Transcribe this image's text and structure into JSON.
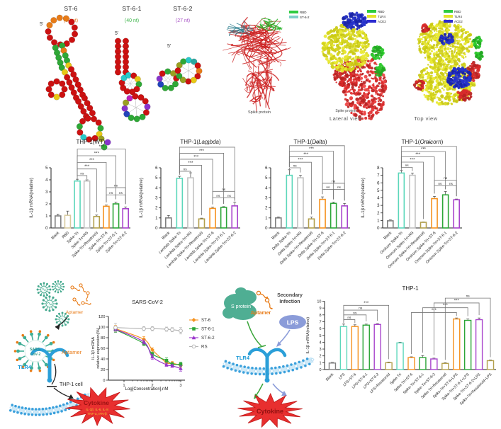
{
  "rna_structures": {
    "panels": [
      {
        "title": "ST-6",
        "length_label": "(80 nt)",
        "color": "#e87722",
        "five_prime": "5'"
      },
      {
        "title": "ST-6-1",
        "length_label": "(40 nt)",
        "color": "#3cb54a",
        "five_prime": "5'"
      },
      {
        "title": "ST-6-2",
        "length_label": "(27 nt)",
        "color": "#a54fc4",
        "five_prime": "5'"
      }
    ]
  },
  "protein_panels": [
    {
      "caption": "Spike protein",
      "legend": [
        {
          "label": "RBD",
          "color": "#2ecc40"
        },
        {
          "label": "ST-6-2",
          "color": "#7fd0c8"
        }
      ]
    },
    {
      "caption": "Spike protein",
      "view_label": "Lateral view",
      "legend": [
        {
          "label": "RBD",
          "color": "#2ecc40"
        },
        {
          "label": "TLR4",
          "color": "#e3e32b"
        },
        {
          "label": "ACE2",
          "color": "#2b2bd0"
        }
      ]
    },
    {
      "view_label": "Top view",
      "legend": [
        {
          "label": "RBD",
          "color": "#2ecc40"
        },
        {
          "label": "TLR4",
          "color": "#e3e32b"
        },
        {
          "label": "ACE2",
          "color": "#2b2bd0"
        }
      ]
    }
  ],
  "schematic_left": {
    "aptamer_label_top": "Aptamer",
    "virus_label_line1": "SARS-",
    "virus_label_line2": "CoV-2",
    "aptamer_label_mid": "Aptamer",
    "receptor_label": "TLR4",
    "cell_label": "THP-1 cell",
    "cytokine_label": "Cytokine",
    "cytokine_line1": "IL-1β, IL-6, IL-8",
    "cytokine_line2": "TNF-α, IFN-β"
  },
  "schematic_right": {
    "s_protein_label": "S protein",
    "aptamer_label": "Aptamer",
    "secondary_line1": "Secondary",
    "secondary_line2": "Infection",
    "lps_label": "LPS",
    "receptor_label": "TLR4",
    "cytokine_label": "Cytokine"
  },
  "chart_data": [
    {
      "id": "wt",
      "type": "bar",
      "title_pre": "THP-1(",
      "title_var": "WT",
      "title_post": ")",
      "variant_italic": false,
      "ylabel": "IL-1β mRNA(relative)",
      "ylim": [
        0,
        5
      ],
      "yticks": [
        0,
        1,
        2,
        3,
        4,
        5
      ],
      "italic_word": "",
      "categories": [
        "Blank",
        "RBD",
        "Spike-Tri",
        "Spike-Tri+RS",
        "Spike-Tri+Resatorvid",
        "Spike-Tri+ST-6",
        "Spike-Tri+ST-6-1",
        "Spike-Tri+ST-6-2"
      ],
      "values": [
        1.0,
        1.05,
        3.9,
        3.9,
        0.95,
        1.8,
        2.0,
        1.6
      ],
      "errors": [
        0.15,
        0.35,
        0.15,
        0.1,
        0.12,
        0.1,
        0.15,
        0.15
      ],
      "colors": [
        "#808080",
        "#d8cba0",
        "#5cd7bb",
        "#c2c2c2",
        "#b3a04c",
        "#f5921f",
        "#2ca637",
        "#a844cc"
      ],
      "sig": [
        {
          "a": 2,
          "b": 3,
          "label": "ns",
          "y": 4.35
        },
        {
          "a": 2,
          "b": 4,
          "label": "***",
          "y": 4.9
        },
        {
          "a": 2,
          "b": 5,
          "label": "***",
          "y": 5.45
        },
        {
          "a": 2,
          "b": 6,
          "label": "***",
          "y": 6.0
        },
        {
          "a": 2,
          "b": 7,
          "label": "***",
          "y": 6.55
        },
        {
          "a": 5,
          "b": 6,
          "label": "ns",
          "y": 2.75
        },
        {
          "a": 6,
          "b": 7,
          "label": "ns",
          "y": 2.75
        },
        {
          "a": 5,
          "b": 7,
          "label": "ns",
          "y": 3.35
        }
      ]
    },
    {
      "id": "lambda",
      "type": "bar",
      "title_pre": "THP-1(",
      "title_var": "Lambda",
      "title_post": ")",
      "variant_italic": true,
      "ylabel": "IL-1β mRNA(relative)",
      "ylim": [
        0,
        6
      ],
      "yticks": [
        0,
        1,
        2,
        3,
        4,
        5,
        6
      ],
      "italic_word": "Lambda",
      "categories": [
        "Blank",
        "Lambda Spike-Tri",
        "Lambda Spike-Tri+RS",
        "Lambda Spike-Tri+Resatorvid",
        "Lambda Spike-Tri+ST-6",
        "Lambda Spike-Tri+ST-6-1",
        "Lambda Spike-Tri+ST-6-2"
      ],
      "values": [
        1.0,
        4.95,
        5.0,
        0.9,
        1.95,
        2.05,
        2.2
      ],
      "errors": [
        0.25,
        0.2,
        0.5,
        0.08,
        0.12,
        0.08,
        0.35
      ],
      "colors": [
        "#808080",
        "#5cd7bb",
        "#c2c2c2",
        "#b3a04c",
        "#f5921f",
        "#2ca637",
        "#a844cc"
      ],
      "sig": [
        {
          "a": 1,
          "b": 2,
          "label": "ns",
          "y": 5.65
        },
        {
          "a": 1,
          "b": 3,
          "label": "***",
          "y": 6.25
        },
        {
          "a": 1,
          "b": 4,
          "label": "***",
          "y": 6.85
        },
        {
          "a": 1,
          "b": 5,
          "label": "***",
          "y": 7.45
        },
        {
          "a": 1,
          "b": 6,
          "label": "***",
          "y": 8.05
        },
        {
          "a": 4,
          "b": 5,
          "label": "ns",
          "y": 3.0
        },
        {
          "a": 5,
          "b": 6,
          "label": "ns",
          "y": 3.0
        },
        {
          "a": 4,
          "b": 6,
          "label": "ns",
          "y": 3.65
        }
      ]
    },
    {
      "id": "delta",
      "type": "bar",
      "title_pre": "THP-1(",
      "title_var": "Delta",
      "title_post": ")",
      "variant_italic": true,
      "ylabel": "",
      "ylim": [
        0,
        6
      ],
      "yticks": [
        0,
        1,
        2,
        3,
        4,
        5,
        6
      ],
      "italic_word": "Delta",
      "categories": [
        "Blank",
        "Delta Spike-Tri",
        "Delta Spike-Tri+RS",
        "Delta Spike-Tri+Resatorvid",
        "Delta Spike-Tri+ST-6",
        "Delta Spike-Tri+ST-6-1",
        "Delta Spike-Tri+ST-6-2"
      ],
      "values": [
        1.0,
        5.25,
        5.0,
        0.9,
        2.85,
        2.45,
        2.2
      ],
      "errors": [
        0.1,
        0.55,
        0.25,
        0.18,
        0.25,
        0.12,
        0.25
      ],
      "colors": [
        "#808080",
        "#5cd7bb",
        "#c2c2c2",
        "#b3a04c",
        "#f5921f",
        "#2ca637",
        "#a844cc"
      ],
      "sig": [
        {
          "a": 1,
          "b": 2,
          "label": "ns",
          "y": 6.0
        },
        {
          "a": 1,
          "b": 3,
          "label": "***",
          "y": 6.55
        },
        {
          "a": 1,
          "b": 4,
          "label": "***",
          "y": 7.1
        },
        {
          "a": 1,
          "b": 5,
          "label": "***",
          "y": 7.65
        },
        {
          "a": 1,
          "b": 6,
          "label": "***",
          "y": 8.2
        },
        {
          "a": 4,
          "b": 5,
          "label": "ns",
          "y": 3.85
        },
        {
          "a": 5,
          "b": 6,
          "label": "ns",
          "y": 3.85
        },
        {
          "a": 4,
          "b": 6,
          "label": "ns",
          "y": 4.45
        }
      ]
    },
    {
      "id": "omicorn",
      "type": "bar",
      "title_pre": "THP-1(",
      "title_var": "Omicorn",
      "title_post": ")",
      "variant_italic": true,
      "ylabel": "IL-1β mRNA(relative)",
      "ylim": [
        0,
        8
      ],
      "yticks": [
        0,
        1,
        2,
        3,
        4,
        5,
        6,
        7,
        8
      ],
      "italic_word": "Omicorn",
      "categories": [
        "Blank",
        "Omicorn Spike-Tri",
        "Omicorn Spike-Tri+RS",
        "Omicorn Spike-Tri+Resatorvid",
        "Omicorn Spike-Tri+ST-6",
        "Omicorn Spike-Tri+ST-6-1",
        "Omicorn Spike-Tri+ST-6-2"
      ],
      "values": [
        0.95,
        7.3,
        7.0,
        0.75,
        3.9,
        4.4,
        3.75
      ],
      "errors": [
        0.12,
        0.35,
        0.3,
        0.06,
        0.3,
        0.45,
        0.1
      ],
      "colors": [
        "#808080",
        "#5cd7bb",
        "#c2c2c2",
        "#b3a04c",
        "#f5921f",
        "#2ca637",
        "#a844cc"
      ],
      "sig": [
        {
          "a": 1,
          "b": 2,
          "label": "ns",
          "y": 8.05
        },
        {
          "a": 1,
          "b": 3,
          "label": "***",
          "y": 8.75
        },
        {
          "a": 1,
          "b": 4,
          "label": "***",
          "y": 9.45
        },
        {
          "a": 1,
          "b": 5,
          "label": "***",
          "y": 10.15
        },
        {
          "a": 1,
          "b": 6,
          "label": "***",
          "y": 10.85
        },
        {
          "a": 4,
          "b": 5,
          "label": "ns",
          "y": 5.6
        },
        {
          "a": 5,
          "b": 6,
          "label": "ns",
          "y": 5.6
        },
        {
          "a": 4,
          "b": 6,
          "label": "ns",
          "y": 6.35
        }
      ]
    },
    {
      "id": "dose",
      "type": "line",
      "title": "SARS-CoV-2",
      "ylabel_lines": [
        "IL-1β mRNA",
        "relative expression(%)"
      ],
      "xlabel": "Log[Concentration],nM",
      "ylim": [
        0,
        120
      ],
      "yticks": [
        0,
        20,
        40,
        60,
        80,
        100,
        120
      ],
      "xticks": [
        1,
        2,
        3
      ],
      "x": [
        0.7,
        1.7,
        2.0,
        2.5,
        2.7,
        3.0
      ],
      "series": [
        {
          "name": "ST-6",
          "color": "#f5921f",
          "marker": "diamond",
          "values": [
            97,
            77,
            57,
            33,
            32,
            28
          ],
          "errors": [
            6,
            5,
            4,
            4,
            3,
            4
          ]
        },
        {
          "name": "ST-6-1",
          "color": "#2ca637",
          "marker": "square",
          "values": [
            95,
            69,
            49,
            37,
            30,
            30
          ],
          "errors": [
            5,
            4,
            4,
            5,
            3,
            4
          ]
        },
        {
          "name": "ST-6-2",
          "color": "#9933cc",
          "marker": "triangle",
          "values": [
            96,
            72,
            44,
            29,
            27,
            22
          ],
          "errors": [
            5,
            4,
            5,
            3,
            3,
            5
          ]
        },
        {
          "name": "RS",
          "color": "#b5b5b5",
          "marker": "circle-open",
          "values": [
            99,
            97,
            97,
            96,
            95,
            93
          ],
          "errors": [
            8,
            4,
            4,
            4,
            4,
            6
          ]
        }
      ]
    },
    {
      "id": "lps",
      "type": "bar",
      "title_pre": "THP-1",
      "title_var": "",
      "title_post": "",
      "variant_italic": false,
      "ylabel": "IL-1β mRNA(relative)",
      "ylim": [
        0,
        10
      ],
      "yticks": [
        0,
        1,
        2,
        3,
        4,
        5,
        6,
        7,
        8,
        9,
        10
      ],
      "italic_word": "",
      "categories": [
        "Blank",
        "LPS",
        "LPS+ST-6",
        "LPS+ST-6-1",
        "LPS+ST-6-2",
        "LPS+Resatorvid",
        "Spike-Tri",
        "Spike-Tri+ST-6",
        "Spike-Tri+ST-6-1",
        "Spike-Tri+ST-6-2",
        "Spike-Tri+Resatorvid",
        "Spike-Tri+ST-6+LPS",
        "Spike-Tri+ST-6-1+LPS",
        "Spike-Tri+ST-6-2+LPS",
        "Spike-Tri+Resatorvid+LPS"
      ],
      "values": [
        0.95,
        6.3,
        6.3,
        6.5,
        6.6,
        1.0,
        3.9,
        1.75,
        1.75,
        1.55,
        0.9,
        7.4,
        7.2,
        7.3,
        1.3
      ],
      "errors": [
        0.1,
        0.35,
        0.25,
        0.15,
        0.12,
        0.1,
        0.1,
        0.12,
        0.3,
        0.12,
        0.1,
        0.15,
        0.2,
        0.25,
        0.1
      ],
      "colors": [
        "#808080",
        "#5cd7bb",
        "#f5921f",
        "#2ca637",
        "#a844cc",
        "#b3a04c",
        "#5cd7bb",
        "#f5921f",
        "#2ca637",
        "#a844cc",
        "#b3a04c",
        "#f5921f",
        "#2ca637",
        "#a844cc",
        "#b3a04c"
      ],
      "sig": [
        {
          "a": 1,
          "b": 2,
          "label": "ns",
          "y": 7.3
        },
        {
          "a": 1,
          "b": 3,
          "label": "ns",
          "y": 8.0
        },
        {
          "a": 1,
          "b": 4,
          "label": "ns",
          "y": 8.7
        },
        {
          "a": 1,
          "b": 5,
          "label": "***",
          "y": 9.4
        },
        {
          "a": 7,
          "b": 11,
          "label": "***",
          "y": 8.35
        },
        {
          "a": 8,
          "b": 12,
          "label": "***",
          "y": 9.05
        },
        {
          "a": 9,
          "b": 13,
          "label": "***",
          "y": 9.75
        },
        {
          "a": 10,
          "b": 14,
          "label": "ns",
          "y": 10.45
        }
      ]
    }
  ]
}
